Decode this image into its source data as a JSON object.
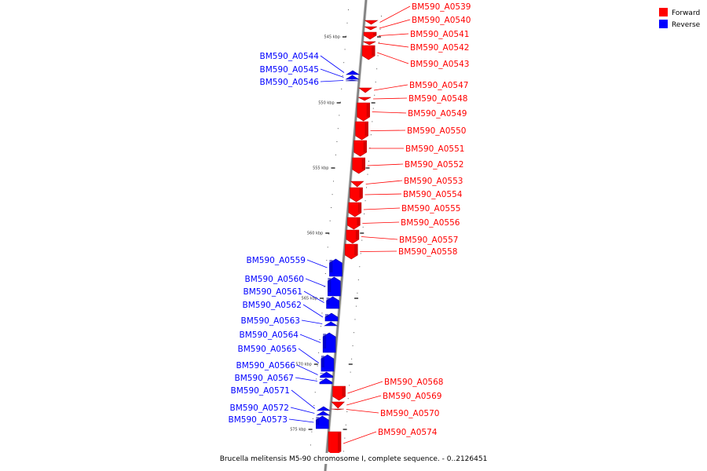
{
  "colors": {
    "forward": "#ff0000",
    "reverse": "#0000ff",
    "backbone": "#808080"
  },
  "legend": [
    {
      "key": "forward",
      "label": "Forward"
    },
    {
      "key": "reverse",
      "label": "Reverse"
    }
  ],
  "caption": "Brucella melitensis M5-90 chromosome I, complete sequence. - 0..2126451",
  "ticks": [
    "545 kbp",
    "550 kbp",
    "555 kbp",
    "560 kbp",
    "565 kbp",
    "570 kbp",
    "575 kbp"
  ],
  "genes": [
    {
      "name": "BM590_A0539",
      "strand": "forward"
    },
    {
      "name": "BM590_A0540",
      "strand": "forward"
    },
    {
      "name": "BM590_A0541",
      "strand": "forward"
    },
    {
      "name": "BM590_A0542",
      "strand": "forward"
    },
    {
      "name": "BM590_A0543",
      "strand": "forward"
    },
    {
      "name": "BM590_A0544",
      "strand": "reverse"
    },
    {
      "name": "BM590_A0545",
      "strand": "reverse"
    },
    {
      "name": "BM590_A0546",
      "strand": "reverse"
    },
    {
      "name": "BM590_A0547",
      "strand": "forward"
    },
    {
      "name": "BM590_A0548",
      "strand": "forward"
    },
    {
      "name": "BM590_A0549",
      "strand": "forward"
    },
    {
      "name": "BM590_A0550",
      "strand": "forward"
    },
    {
      "name": "BM590_A0551",
      "strand": "forward"
    },
    {
      "name": "BM590_A0552",
      "strand": "forward"
    },
    {
      "name": "BM590_A0553",
      "strand": "forward"
    },
    {
      "name": "BM590_A0554",
      "strand": "forward"
    },
    {
      "name": "BM590_A0555",
      "strand": "forward"
    },
    {
      "name": "BM590_A0556",
      "strand": "forward"
    },
    {
      "name": "BM590_A0557",
      "strand": "forward"
    },
    {
      "name": "BM590_A0558",
      "strand": "forward"
    },
    {
      "name": "BM590_A0559",
      "strand": "reverse"
    },
    {
      "name": "BM590_A0560",
      "strand": "reverse"
    },
    {
      "name": "BM590_A0561",
      "strand": "reverse"
    },
    {
      "name": "BM590_A0562",
      "strand": "reverse"
    },
    {
      "name": "BM590_A0563",
      "strand": "reverse"
    },
    {
      "name": "BM590_A0564",
      "strand": "reverse"
    },
    {
      "name": "BM590_A0565",
      "strand": "reverse"
    },
    {
      "name": "BM590_A0566",
      "strand": "reverse"
    },
    {
      "name": "BM590_A0567",
      "strand": "reverse"
    },
    {
      "name": "BM590_A0568",
      "strand": "forward"
    },
    {
      "name": "BM590_A0569",
      "strand": "forward"
    },
    {
      "name": "BM590_A0570",
      "strand": "forward"
    },
    {
      "name": "BM590_A0571",
      "strand": "reverse"
    },
    {
      "name": "BM590_A0572",
      "strand": "reverse"
    },
    {
      "name": "BM590_A0573",
      "strand": "reverse"
    },
    {
      "name": "BM590_A0574",
      "strand": "forward"
    }
  ]
}
